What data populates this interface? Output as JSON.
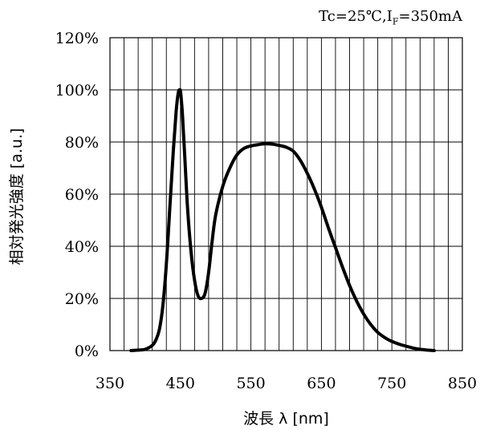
{
  "conditions": {
    "tc": "Tc=25℃,",
    "i": "I",
    "i_sub": "F",
    "current": "=350mA"
  },
  "chart_data": {
    "type": "line",
    "title": "",
    "xlabel": "波長 λ [nm]",
    "ylabel": "相対発光強度 [a.u.]",
    "xlim": [
      350,
      850
    ],
    "ylim": [
      0,
      120
    ],
    "x_ticks": [
      350,
      450,
      550,
      650,
      750,
      850
    ],
    "x_tick_labels": [
      "350",
      "450",
      "550",
      "650",
      "750",
      "850"
    ],
    "y_ticks": [
      0,
      20,
      40,
      60,
      80,
      100,
      120
    ],
    "y_tick_labels": [
      "0%",
      "20%",
      "40%",
      "60%",
      "80%",
      "100%",
      "120%"
    ],
    "vertical_grid_step": 20,
    "grid": true,
    "line_color": "#000000",
    "series": [
      {
        "x": [
          380,
          390,
          400,
          410,
          415,
          420,
          425,
          430,
          435,
          440,
          444,
          447,
          449,
          450,
          451,
          453,
          456,
          460,
          465,
          470,
          475,
          480,
          485,
          490,
          495,
          500,
          510,
          520,
          530,
          540,
          550,
          560,
          570,
          580,
          590,
          600,
          610,
          620,
          630,
          640,
          650,
          660,
          670,
          680,
          690,
          700,
          710,
          720,
          730,
          740,
          750,
          760,
          770,
          780,
          790,
          800,
          810
        ],
        "y": [
          0,
          0.2,
          0.5,
          2,
          4,
          8,
          17,
          33,
          55,
          77,
          92,
          99,
          100,
          99.5,
          97,
          90,
          75,
          55,
          38,
          27,
          21,
          20,
          22,
          30,
          42,
          52,
          63,
          70,
          75,
          77.5,
          78.5,
          79,
          79.3,
          79.2,
          78.7,
          78,
          76.5,
          73,
          68,
          62,
          55,
          47,
          39.5,
          32,
          25,
          19,
          14,
          10,
          7,
          5,
          3.5,
          2.5,
          1.7,
          1,
          0.5,
          0.2,
          0
        ]
      }
    ]
  }
}
